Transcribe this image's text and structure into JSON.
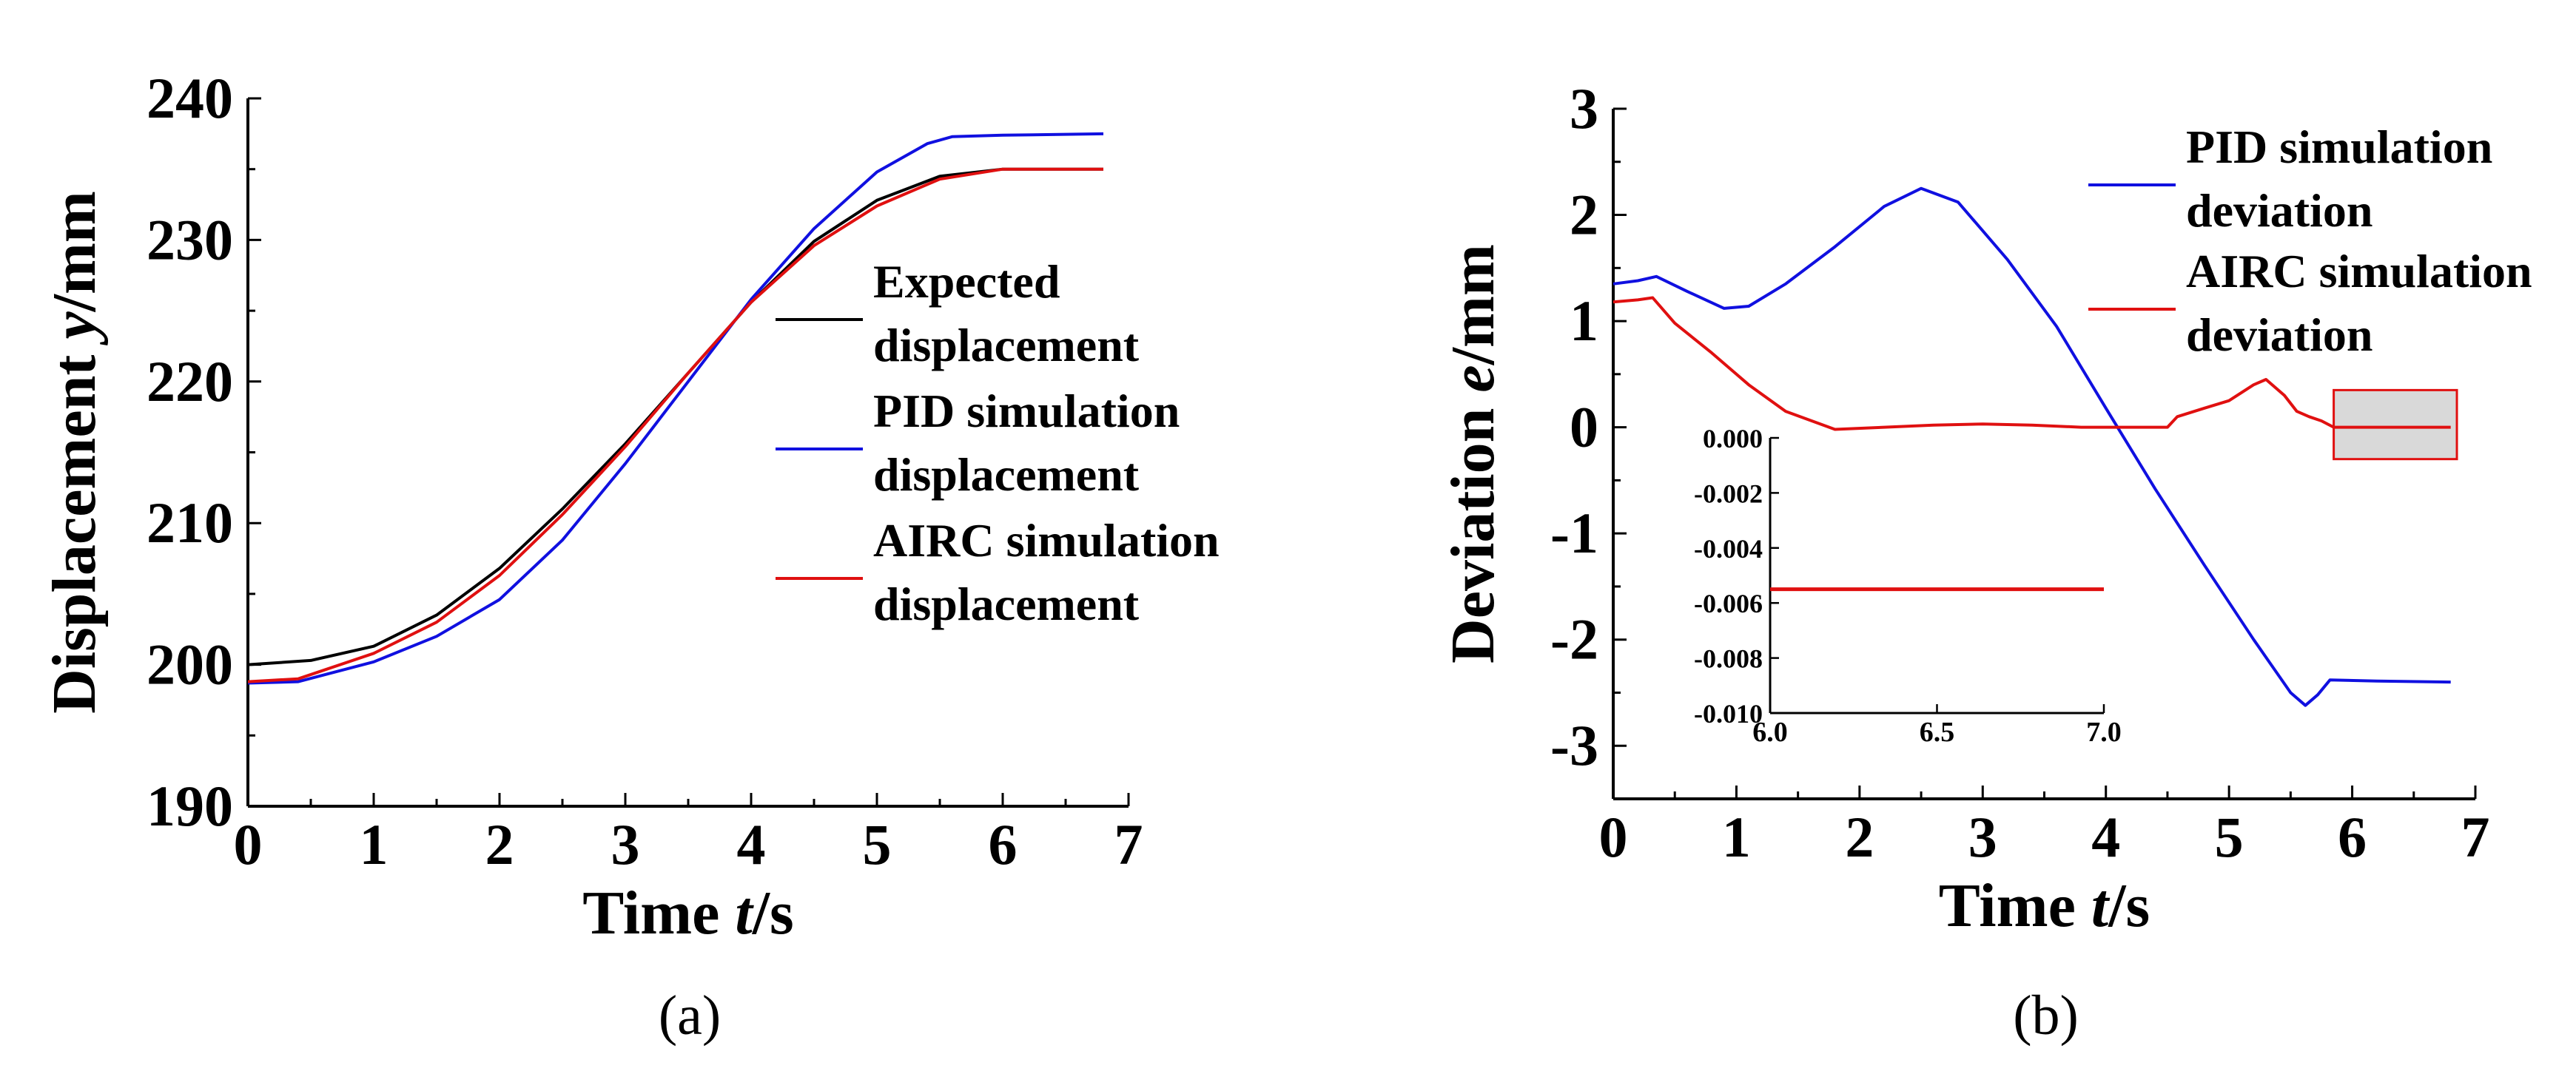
{
  "chart_data": [
    {
      "id": "a",
      "type": "line",
      "panel_label": "(a)",
      "xlabel": {
        "prefix": "Time ",
        "var": "t",
        "suffix": "/s"
      },
      "ylabel": {
        "prefix": "Displacement ",
        "var": "y",
        "suffix": "/mm"
      },
      "xlim": [
        0,
        7
      ],
      "ylim": [
        190,
        240
      ],
      "xticks": [
        0,
        1,
        2,
        3,
        4,
        5,
        6,
        7
      ],
      "yticks": [
        190,
        200,
        210,
        220,
        230,
        240
      ],
      "legend_position": "right",
      "series": [
        {
          "name": "Expected displacement",
          "legend_lines": [
            "Expected",
            "displacement"
          ],
          "color": "#000000",
          "x": [
            0,
            0.5,
            1.0,
            1.5,
            2.0,
            2.5,
            3.0,
            3.5,
            4.0,
            4.5,
            5.0,
            5.5,
            6.0,
            6.8
          ],
          "y": [
            200,
            200.3,
            201.3,
            203.5,
            206.8,
            211.0,
            215.6,
            220.6,
            225.6,
            229.9,
            232.8,
            234.5,
            235.0,
            235.0
          ]
        },
        {
          "name": "PID simulation displacement",
          "legend_lines": [
            "PID simulation",
            "displacement"
          ],
          "color": "#1010e0",
          "x": [
            0,
            0.4,
            1.0,
            1.5,
            2.0,
            2.5,
            3.0,
            3.5,
            4.0,
            4.5,
            5.0,
            5.4,
            5.6,
            6.0,
            6.8
          ],
          "y": [
            198.7,
            198.8,
            200.2,
            202.0,
            204.6,
            208.8,
            214.2,
            220.0,
            225.8,
            230.8,
            234.8,
            236.8,
            237.3,
            237.4,
            237.5
          ]
        },
        {
          "name": "AIRC simulation displacement",
          "legend_lines": [
            "AIRC simulation",
            "displacement"
          ],
          "color": "#e01010",
          "x": [
            0,
            0.4,
            1.0,
            1.5,
            2.0,
            2.5,
            3.0,
            3.5,
            4.0,
            4.5,
            5.0,
            5.5,
            6.0,
            6.8
          ],
          "y": [
            198.8,
            199.0,
            200.8,
            203.0,
            206.3,
            210.6,
            215.4,
            220.6,
            225.6,
            229.6,
            232.4,
            234.3,
            235.0,
            235.0
          ]
        }
      ]
    },
    {
      "id": "b",
      "type": "line",
      "panel_label": "(b)",
      "xlabel": {
        "prefix": "Time ",
        "var": "t",
        "suffix": "/s"
      },
      "ylabel": {
        "prefix": "Deviation ",
        "var": "e",
        "suffix": "/mm"
      },
      "xlim": [
        0,
        7
      ],
      "ylim": [
        -3.5,
        3
      ],
      "xticks": [
        0,
        1,
        2,
        3,
        4,
        5,
        6,
        7
      ],
      "yticks": [
        -3,
        -2,
        -1,
        0,
        1,
        2,
        3
      ],
      "legend_position": "top-right",
      "series": [
        {
          "name": "PID simulation deviation",
          "legend_lines": [
            "PID simulation",
            "deviation"
          ],
          "color": "#1010e0",
          "x": [
            0,
            0.2,
            0.35,
            0.6,
            0.9,
            1.1,
            1.4,
            1.8,
            2.2,
            2.5,
            2.8,
            3.2,
            3.6,
            4.0,
            4.4,
            4.8,
            5.2,
            5.5,
            5.62,
            5.72,
            5.82,
            6.2,
            6.8
          ],
          "y": [
            1.35,
            1.38,
            1.42,
            1.28,
            1.12,
            1.14,
            1.35,
            1.7,
            2.08,
            2.25,
            2.12,
            1.58,
            0.95,
            0.18,
            -0.58,
            -1.3,
            -2.0,
            -2.5,
            -2.62,
            -2.52,
            -2.38,
            -2.39,
            -2.4
          ]
        },
        {
          "name": "AIRC simulation deviation",
          "legend_lines": [
            "AIRC simulation",
            "deviation"
          ],
          "color": "#e01010",
          "x": [
            0,
            0.2,
            0.32,
            0.5,
            0.8,
            1.1,
            1.4,
            1.8,
            2.2,
            2.6,
            3.0,
            3.4,
            3.8,
            4.2,
            4.5,
            4.58,
            4.8,
            5.0,
            5.2,
            5.3,
            5.45,
            5.55,
            5.65,
            5.75,
            5.85,
            6.2,
            6.8
          ],
          "y": [
            1.18,
            1.2,
            1.22,
            0.98,
            0.7,
            0.4,
            0.15,
            -0.02,
            0.0,
            0.02,
            0.03,
            0.02,
            0.0,
            0.0,
            0.0,
            0.1,
            0.18,
            0.25,
            0.4,
            0.45,
            0.3,
            0.15,
            0.1,
            0.06,
            0.0,
            0.0,
            0.0
          ]
        }
      ],
      "highlight_box": {
        "x": [
          5.85,
          6.85
        ],
        "y": [
          -0.3,
          0.35
        ]
      },
      "inset": {
        "xlim": [
          6.0,
          7.0
        ],
        "ylim": [
          -0.01,
          0.0
        ],
        "xticks": [
          6.0,
          6.5,
          7.0
        ],
        "xtick_labels": [
          "6.0",
          "6.5",
          "7.0"
        ],
        "yticks": [
          0.0,
          -0.002,
          -0.004,
          -0.006,
          -0.008,
          -0.01
        ],
        "ytick_labels": [
          "0.000",
          "-0.002",
          "-0.004",
          "-0.006",
          "-0.008",
          "-0.010"
        ],
        "series": [
          {
            "name": "AIRC simulation deviation (zoom)",
            "color": "#e01010",
            "x": [
              6.0,
              7.0
            ],
            "y": [
              -0.0055,
              -0.0055
            ]
          }
        ]
      }
    }
  ]
}
